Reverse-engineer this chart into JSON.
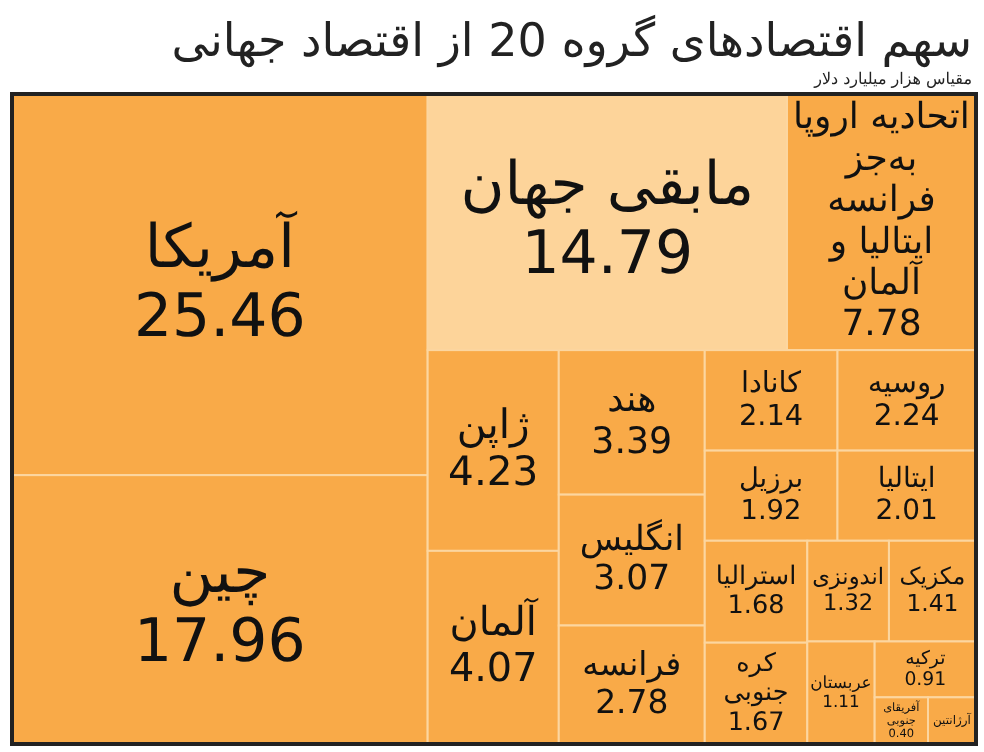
{
  "chart_data": {
    "type": "other",
    "title": "سهم اقتصادهای گروه 20 از اقتصاد جهانی",
    "subtitle": "مقیاس هزار میلیارد دلار",
    "categories": [
      "آمریکا",
      "چین",
      "اتحادیه اروپا به‌جز فرانسه ایتالیا و آلمان",
      "مابقی جهان",
      "ژاپن",
      "آلمان",
      "هند",
      "انگلیس",
      "فرانسه",
      "روسیه",
      "کانادا",
      "ایتالیا",
      "برزیل",
      "استرالیا",
      "کره جنوبی",
      "مکزیک",
      "اندونزی",
      "عربستان",
      "ترکیه",
      "آفریقای جنوبی",
      "آرژانتین"
    ],
    "values": [
      25.46,
      17.96,
      7.78,
      14.79,
      4.23,
      4.07,
      3.39,
      3.07,
      2.78,
      2.24,
      2.14,
      2.01,
      1.92,
      1.68,
      1.67,
      1.41,
      1.32,
      1.11,
      0.91,
      0.4,
      null
    ],
    "colors": [
      "#f9aa48",
      "#f9aa48",
      "#f9aa48",
      "#fdd49a",
      "#f9aa48",
      "#f9aa48",
      "#f9aa48",
      "#f9aa48",
      "#f9aa48",
      "#f9aa48",
      "#f9aa48",
      "#f9aa48",
      "#f9aa48",
      "#f9aa48",
      "#f9aa48",
      "#f9aa48",
      "#f9aa48",
      "#f9aa48",
      "#f9aa48",
      "#f9aa48",
      "#f9aa48"
    ],
    "value_labels": [
      "25.46",
      "17.96",
      "7.78",
      "14.79",
      "4.23",
      "4.07",
      "3.39",
      "3.07",
      "2.78",
      "2.24",
      "2.14",
      "2.01",
      "1.92",
      "1.68",
      "1.67",
      "1.41",
      "1.32",
      "1.11",
      "0.91",
      "0.40",
      null
    ]
  }
}
